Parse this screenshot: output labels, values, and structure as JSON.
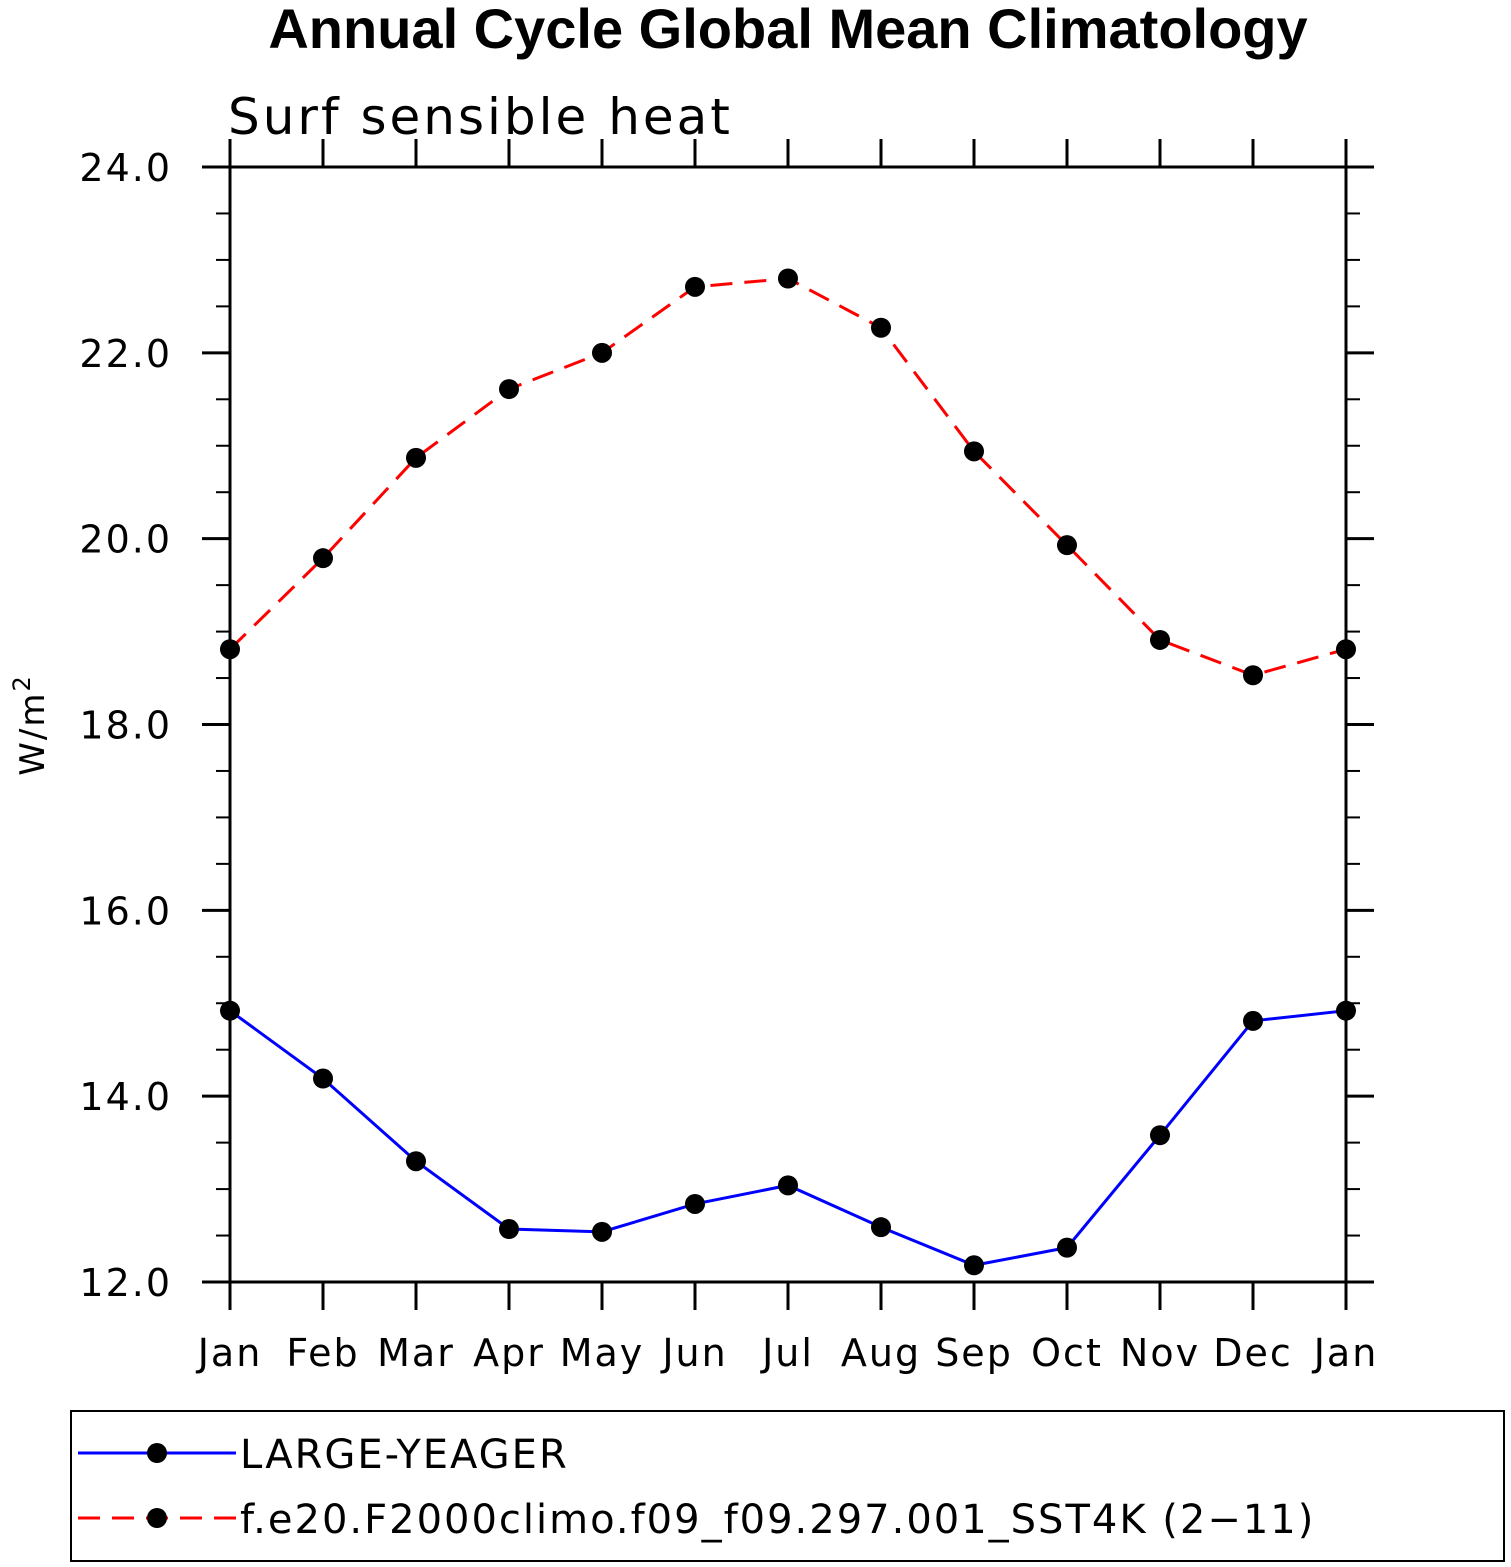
{
  "chart_data": {
    "type": "line",
    "title": "Annual Cycle Global Mean Climatology",
    "subtitle": "Surf sensible heat",
    "ylabel": "W/m",
    "ylabel_superscript": "2",
    "ylim": [
      12.0,
      24.0
    ],
    "yticks": [
      "12.0",
      "14.0",
      "16.0",
      "18.0",
      "20.0",
      "22.0",
      "24.0"
    ],
    "categories": [
      "Jan",
      "Feb",
      "Mar",
      "Apr",
      "May",
      "Jun",
      "Jul",
      "Aug",
      "Sep",
      "Oct",
      "Nov",
      "Dec",
      "Jan"
    ],
    "series": [
      {
        "name": "LARGE-YEAGER",
        "color": "#0000ff",
        "style": "solid",
        "marker": "filled-circle",
        "values": [
          14.92,
          14.19,
          13.3,
          12.57,
          12.54,
          12.84,
          13.04,
          12.59,
          12.18,
          12.37,
          13.58,
          14.81,
          14.92
        ]
      },
      {
        "name": "f.e20.F2000climo.f09_f09.297.001_SST4K (2−11)",
        "color": "#ff0000",
        "style": "dashed",
        "marker": "filled-circle",
        "values": [
          18.81,
          19.79,
          20.87,
          21.61,
          22.0,
          22.71,
          22.8,
          22.27,
          20.94,
          19.93,
          18.91,
          18.53,
          18.81
        ]
      }
    ],
    "legend_position": "bottom",
    "grid": false
  }
}
